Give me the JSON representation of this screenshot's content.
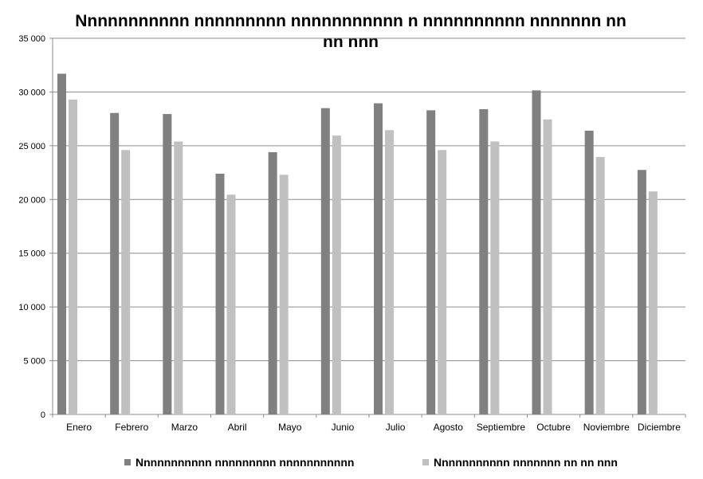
{
  "chart_data": {
    "type": "bar",
    "title": "Nnnnnnnnnnn nnnnnnnnn nnnnnnnnnnn n nnnnnnnnnn nnnnnnn nn nn nnn",
    "xlabel": "",
    "ylabel": "",
    "categories": [
      "Enero",
      "Febrero",
      "Marzo",
      "Abril",
      "Mayo",
      "Junio",
      "Julio",
      "Agosto",
      "Septiembre",
      "Octubre",
      "Noviembre",
      "Diciembre"
    ],
    "ylim": [
      0,
      35000
    ],
    "yticks": [
      0,
      5000,
      10000,
      15000,
      20000,
      25000,
      30000,
      35000
    ],
    "ytick_labels": [
      "0",
      "5 000",
      "10 000",
      "15 000",
      "20 000",
      "25 000",
      "30 000",
      "35 000"
    ],
    "grid": true,
    "legend_position": "bottom",
    "series": [
      {
        "name": "Nnnnnnnnnnn nnnnnnnnn nnnnnnnnnnn",
        "color": "#808080",
        "values": [
          31700,
          28050,
          27950,
          22400,
          24400,
          28500,
          28950,
          28300,
          28400,
          30150,
          26400,
          22750
        ]
      },
      {
        "name": "Nnnnnnnnnnn nnnnnnn nn nn nnn",
        "color": "#c0c0c0",
        "values": [
          29300,
          24600,
          25400,
          20450,
          22300,
          25950,
          26450,
          24600,
          25400,
          27450,
          23950,
          20750
        ]
      }
    ]
  }
}
